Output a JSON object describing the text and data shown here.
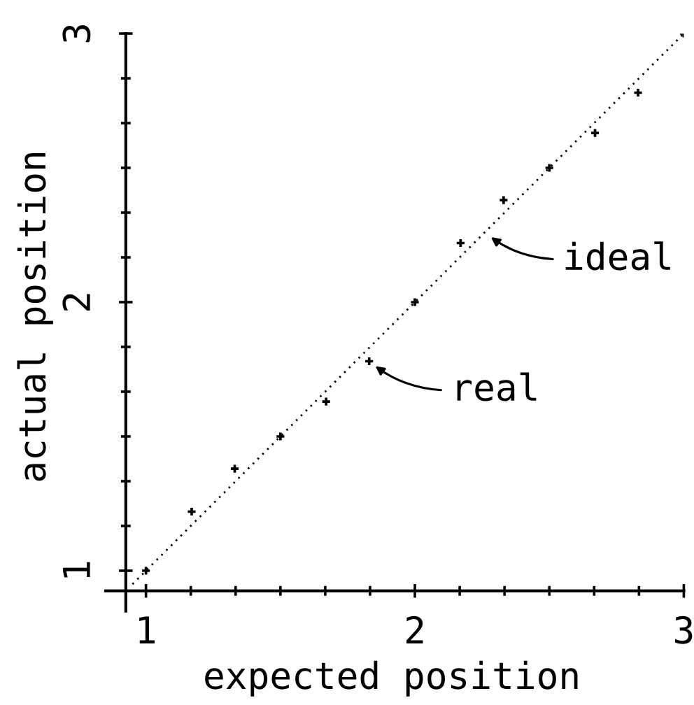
{
  "chart_data": {
    "type": "scatter",
    "xlabel": "expected position",
    "ylabel": "actual position",
    "xlim": [
      0.85,
      3
    ],
    "ylim": [
      0.85,
      3
    ],
    "xticks": [
      1,
      {
        "value": 1.1667,
        "label": null
      },
      {
        "value": 1.3333,
        "label": null
      },
      {
        "value": 1.5,
        "label": null
      },
      {
        "value": 1.6667,
        "label": null
      },
      {
        "value": 1.8333,
        "label": null
      },
      2,
      {
        "value": 2.1667,
        "label": null
      },
      {
        "value": 2.3333,
        "label": null
      },
      {
        "value": 2.5,
        "label": null
      },
      {
        "value": 2.6667,
        "label": null
      },
      {
        "value": 2.8333,
        "label": null
      },
      3
    ],
    "yticks": [
      1,
      {
        "value": 1.1667,
        "label": null
      },
      {
        "value": 1.3333,
        "label": null
      },
      {
        "value": 1.5,
        "label": null
      },
      {
        "value": 1.6667,
        "label": null
      },
      {
        "value": 1.8333,
        "label": null
      },
      2,
      {
        "value": 2.1667,
        "label": null
      },
      {
        "value": 2.3333,
        "label": null
      },
      {
        "value": 2.5,
        "label": null
      },
      {
        "value": 2.6667,
        "label": null
      },
      {
        "value": 2.8333,
        "label": null
      },
      3
    ],
    "series": [
      {
        "type": "line",
        "color": "#000000",
        "x": [
          0.95,
          3
        ],
        "values": [
          0.95,
          3
        ],
        "line_style": "dotted",
        "marker": "none"
      },
      {
        "color": "#000000",
        "marker": "cross",
        "x": [
          1,
          1.17,
          1.33,
          1.5,
          1.67,
          1.83,
          2,
          2.17,
          2.33,
          2.5,
          2.67,
          2.83,
          3
        ],
        "values": [
          1,
          1.22,
          1.38,
          1.5,
          1.63,
          1.78,
          2,
          2.22,
          2.38,
          2.5,
          2.63,
          2.78,
          3
        ]
      }
    ],
    "annotations": [
      {
        "text": "ideal",
        "x": 2.26,
        "y": 2.26
      },
      {
        "text": "real",
        "x": 1.83,
        "y": 1.78
      }
    ]
  }
}
